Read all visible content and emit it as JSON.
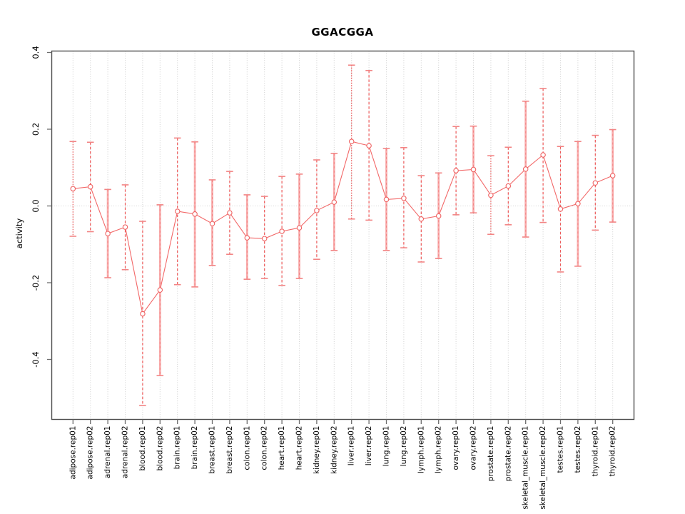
{
  "title": "GGACGGA",
  "ylabel": "activity",
  "chart_data": {
    "type": "line",
    "title": "GGACGGA",
    "xlabel": "",
    "ylabel": "activity",
    "ylim": [
      -0.556,
      0.404
    ],
    "yticks": [
      -0.4,
      -0.2,
      0.0,
      0.2,
      0.4
    ],
    "grid": "vertical dotted gridline at each category; dotted horizontal line at y=0; legend none",
    "error_bars": true,
    "categories": [
      "adipose.rep01",
      "adipose.rep02",
      "adrenal.rep01",
      "adrenal.rep02",
      "blood.rep01",
      "blood.rep02",
      "brain.rep01",
      "brain.rep02",
      "breast.rep01",
      "breast.rep02",
      "colon.rep01",
      "colon.rep02",
      "heart.rep01",
      "heart.rep02",
      "kidney.rep01",
      "kidney.rep02",
      "liver.rep01",
      "liver.rep02",
      "lung.rep01",
      "lung.rep02",
      "lymph.rep01",
      "lymph.rep02",
      "ovary.rep01",
      "ovary.rep02",
      "prostate.rep01",
      "prostate.rep02",
      "skeletal_muscle.rep01",
      "skeletal_muscle.rep02",
      "testes.rep01",
      "testes.rep02",
      "thyroid.rep01",
      "thyroid.rep02"
    ],
    "series": [
      {
        "name": "activity",
        "values": [
          0.045,
          0.05,
          -0.072,
          -0.055,
          -0.281,
          -0.219,
          -0.014,
          -0.021,
          -0.046,
          -0.018,
          -0.083,
          -0.085,
          -0.066,
          -0.057,
          -0.012,
          0.01,
          0.168,
          0.157,
          0.017,
          0.02,
          -0.034,
          -0.026,
          0.092,
          0.095,
          0.028,
          0.052,
          0.096,
          0.133,
          -0.008,
          0.006,
          0.06,
          0.079
        ],
        "err_high": [
          0.168,
          0.166,
          0.043,
          0.055,
          -0.04,
          0.003,
          0.177,
          0.167,
          0.068,
          0.09,
          0.029,
          0.025,
          0.077,
          0.083,
          0.12,
          0.137,
          0.367,
          0.353,
          0.15,
          0.152,
          0.079,
          0.086,
          0.207,
          0.208,
          0.131,
          0.153,
          0.273,
          0.306,
          0.155,
          0.168,
          0.184,
          0.199
        ],
        "err_low": [
          -0.079,
          -0.067,
          -0.187,
          -0.166,
          -0.52,
          -0.442,
          -0.205,
          -0.211,
          -0.155,
          -0.126,
          -0.191,
          -0.189,
          -0.207,
          -0.189,
          -0.139,
          -0.116,
          -0.034,
          -0.037,
          -0.116,
          -0.109,
          -0.146,
          -0.137,
          -0.023,
          -0.018,
          -0.074,
          -0.049,
          -0.081,
          -0.043,
          -0.172,
          -0.157,
          -0.063,
          -0.042
        ],
        "bar_styles": [
          "dotted",
          "dashed",
          "solid",
          "dashed",
          "dashed",
          "solid",
          "dashed",
          "solid",
          "solid",
          "dashed",
          "solid",
          "dashed",
          "dashed",
          "solid",
          "dashed",
          "solid",
          "dotted",
          "dashed",
          "solid",
          "dashed",
          "dashed",
          "solid",
          "dashed",
          "solid",
          "dotted",
          "dashed",
          "solid",
          "dashed",
          "dashed",
          "solid",
          "dashed",
          "solid"
        ]
      }
    ],
    "colors": {
      "series": "#f26868",
      "point_stroke": "#ef6262",
      "point_fill": "#ffffff",
      "bar_solid_stem": "#f8acac",
      "bar_solid_core": "#ef6868",
      "bar_cap": "#f28484",
      "bar_dashed": "#ee5858",
      "grid": "#cfcfcf",
      "frame": "#4d4d4d",
      "tick": "#6e6e6e",
      "text": "#000000"
    }
  }
}
